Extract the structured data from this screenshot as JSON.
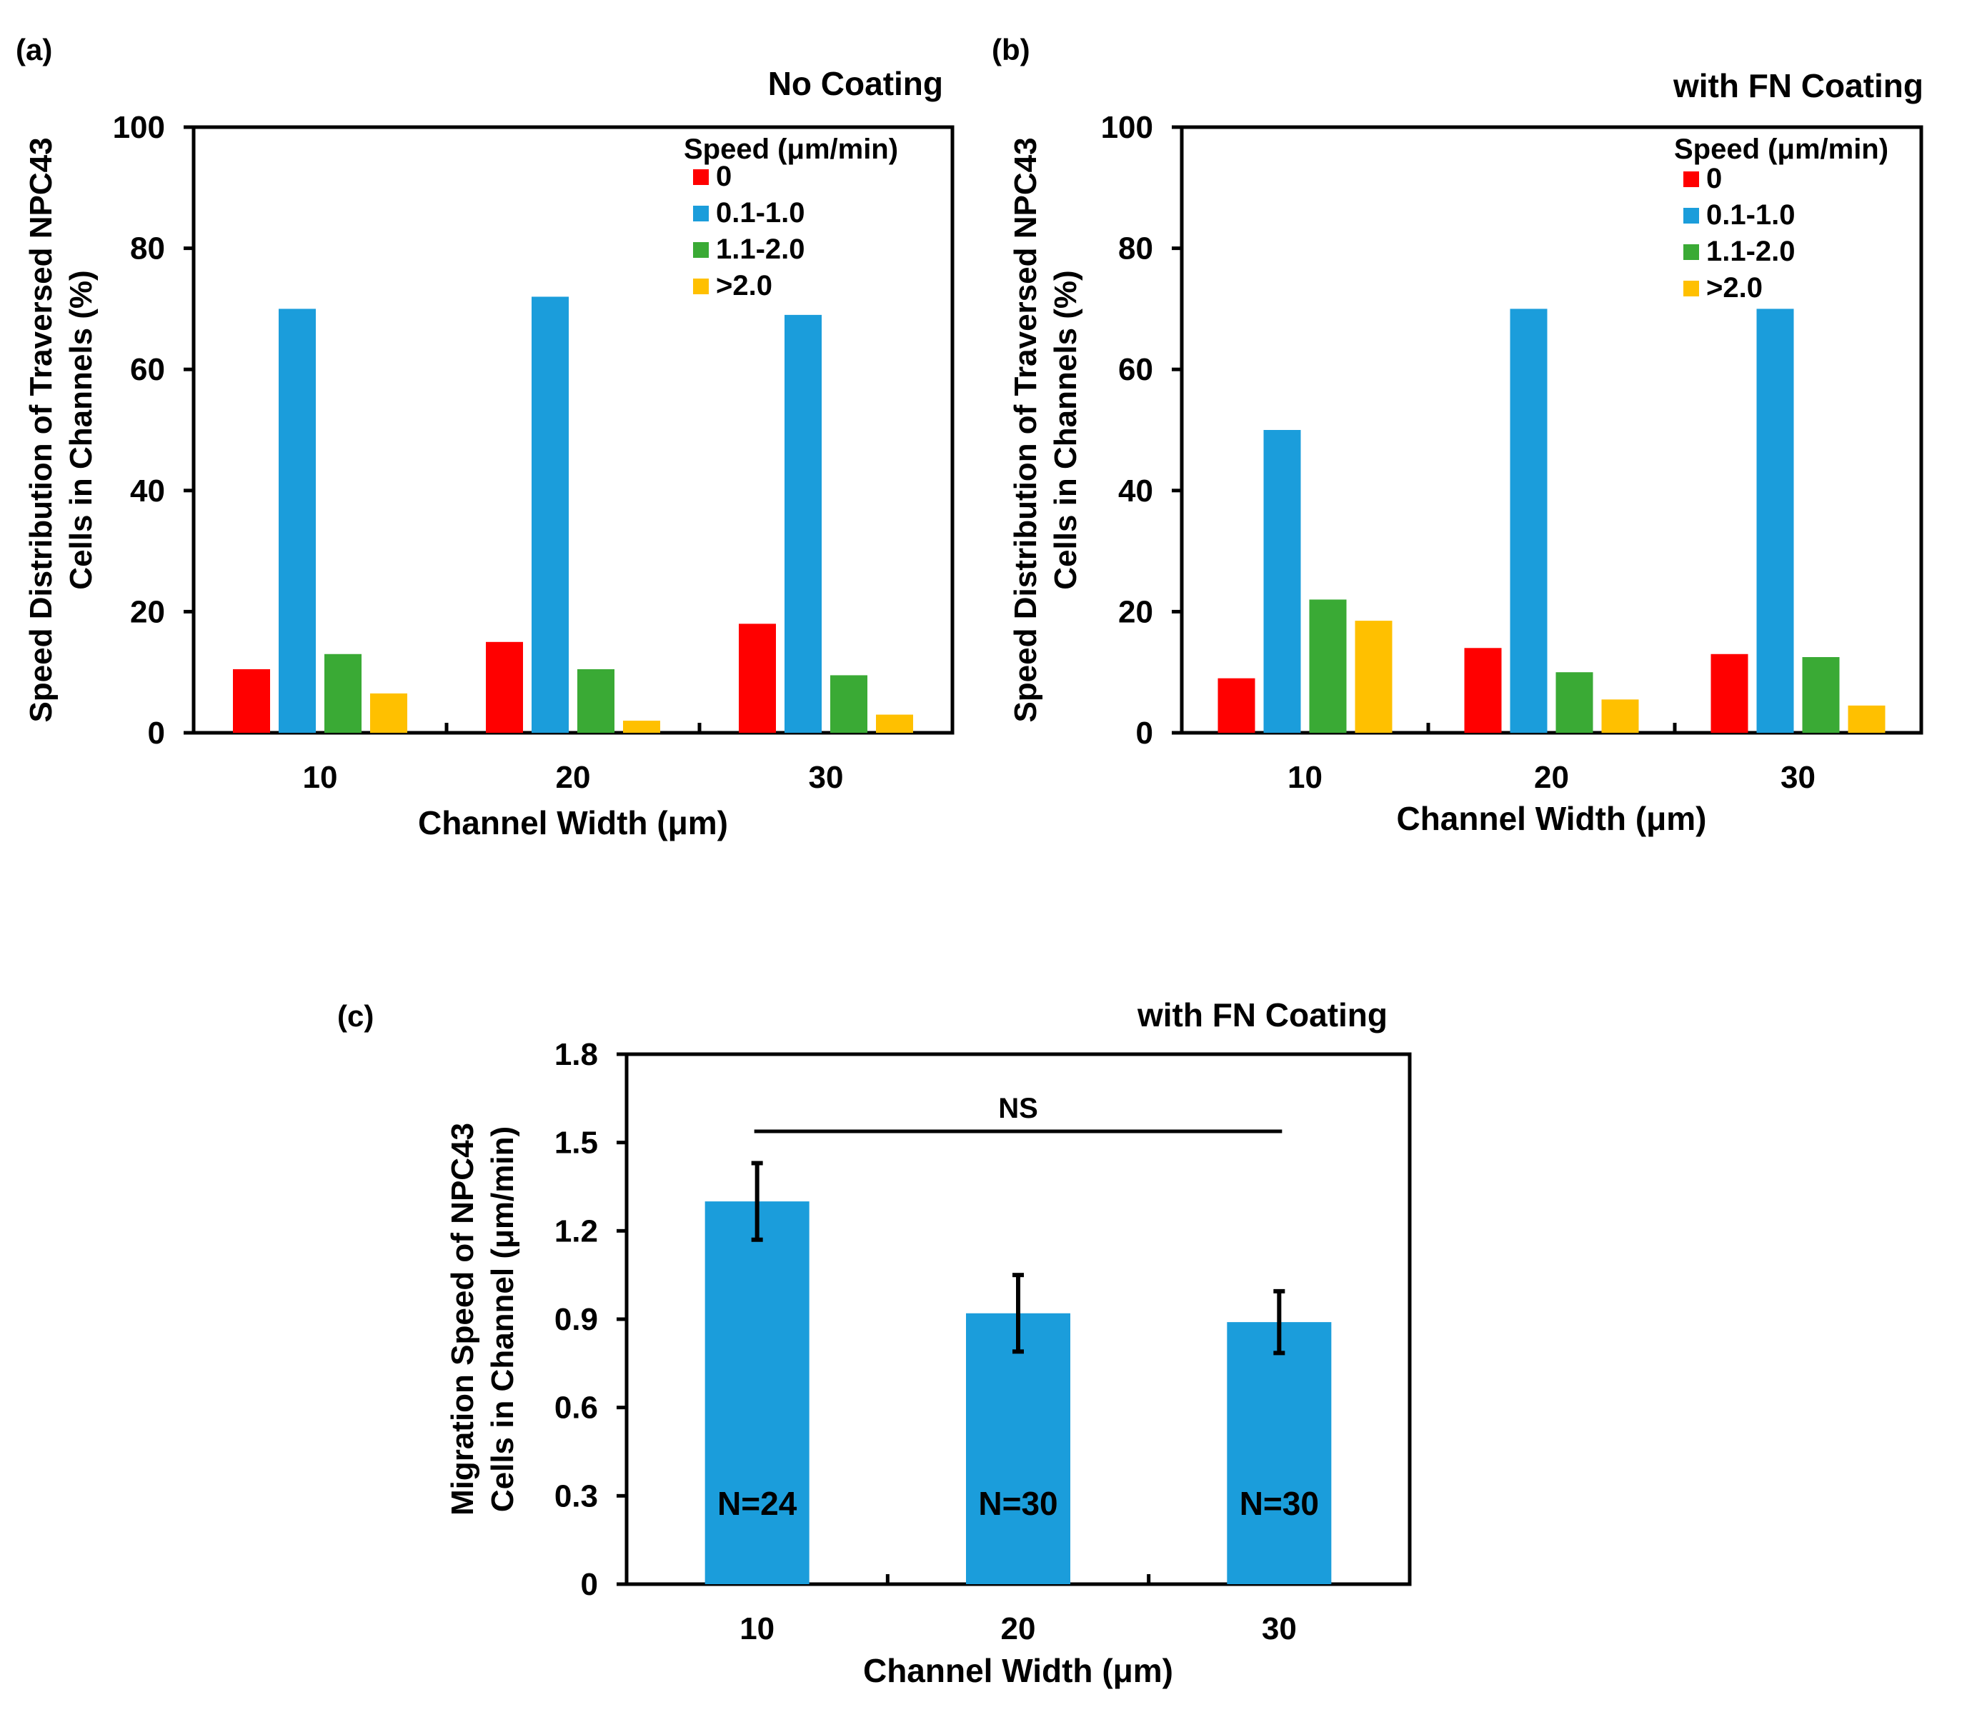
{
  "chart_data": [
    {
      "panel": "(a)",
      "type": "bar",
      "title": "No Coating",
      "xlabel": "Channel Width (μm)",
      "ylabel_lines": [
        "Speed Distribution  of Traversed NPC43",
        "Cells in Channels (%)"
      ],
      "categories": [
        "10",
        "20",
        "30"
      ],
      "ylim": [
        0,
        100
      ],
      "yticks": [
        "0",
        "20",
        "40",
        "60",
        "80",
        "100"
      ],
      "legend_title": "Speed (μm/min)",
      "legend_position": "top-right",
      "series": [
        {
          "name": "0",
          "color": "#FF0000",
          "values": [
            10.5,
            15,
            18
          ]
        },
        {
          "name": "0.1-1.0",
          "color": "#1B9DDB",
          "values": [
            70,
            72,
            69
          ]
        },
        {
          "name": "1.1-2.0",
          "color": "#3AAA35",
          "values": [
            13,
            10.5,
            9.5
          ]
        },
        {
          "name": ">2.0",
          "color": "#FFC000",
          "values": [
            6.5,
            2,
            3
          ]
        }
      ]
    },
    {
      "panel": "(b)",
      "type": "bar",
      "title": "with FN Coating",
      "xlabel": "Channel Width (μm)",
      "ylabel_lines": [
        "Speed Distribution  of Traversed NPC43",
        "Cells in Channels (%)"
      ],
      "categories": [
        "10",
        "20",
        "30"
      ],
      "ylim": [
        0,
        100
      ],
      "yticks": [
        "0",
        "20",
        "40",
        "60",
        "80",
        "100"
      ],
      "legend_title": "Speed (μm/min)",
      "legend_position": "top-right",
      "series": [
        {
          "name": "0",
          "color": "#FF0000",
          "values": [
            9,
            14,
            13
          ]
        },
        {
          "name": "0.1-1.0",
          "color": "#1B9DDB",
          "values": [
            50,
            70,
            70
          ]
        },
        {
          "name": "1.1-2.0",
          "color": "#3AAA35",
          "values": [
            22,
            10,
            12.5
          ]
        },
        {
          "name": ">2.0",
          "color": "#FFC000",
          "values": [
            18.5,
            5.5,
            4.5
          ]
        }
      ]
    },
    {
      "panel": "(c)",
      "type": "bar",
      "title": "with FN Coating",
      "xlabel": "Channel Width (μm)",
      "ylabel_lines": [
        "Migration Speed of  NPC43",
        "Cells in Channel (μm/min)"
      ],
      "categories": [
        "10",
        "20",
        "30"
      ],
      "ylim": [
        0,
        1.8
      ],
      "yticks": [
        "0",
        "0.3",
        "0.6",
        "0.9",
        "1.2",
        "1.5",
        "1.8"
      ],
      "series": [
        {
          "name": "Migration speed",
          "color": "#1B9DDB",
          "values": [
            1.3,
            0.92,
            0.89
          ],
          "errors": [
            0.13,
            0.13,
            0.105
          ]
        }
      ],
      "bar_labels": [
        "N=24",
        "N=30",
        "N=30"
      ],
      "significance_label": "NS"
    }
  ]
}
